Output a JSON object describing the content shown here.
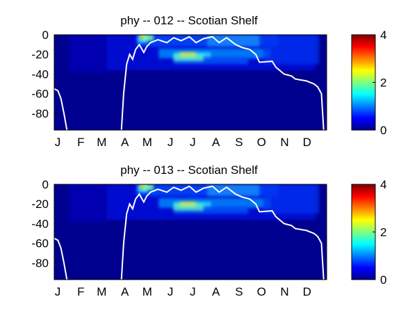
{
  "chart_data": [
    {
      "type": "heatmap",
      "title": "phy -- 012 -- Scotian Shelf",
      "xlabel": "",
      "ylabel": "",
      "x_ticks": [
        "J",
        "F",
        "M",
        "A",
        "M",
        "J",
        "J",
        "A",
        "S",
        "O",
        "N",
        "D"
      ],
      "y_ticks": [
        0,
        -20,
        -40,
        -60,
        -80
      ],
      "ylim": [
        -97,
        0
      ],
      "colorbar": {
        "range": [
          0,
          4
        ],
        "ticks": [
          0,
          2,
          4
        ],
        "colormap": "jet"
      },
      "mixed_layer_depth": {
        "x": [
          "Jan 1",
          "Jan 6",
          "Jan 10",
          "Jan 14",
          "Jan 18",
          "Apr 1",
          "Apr 4",
          "Apr 8",
          "Apr 12",
          "Apr 16",
          "Apr 20",
          "Apr 25",
          "May 1",
          "May 5",
          "May 10",
          "May 20",
          "Jun 1",
          "Jun 10",
          "Jun 20",
          "Jul 1",
          "Jul 10",
          "Jul 20",
          "Aug 1",
          "Aug 10",
          "Aug 20",
          "Sep 1",
          "Sep 10",
          "Sep 20",
          "Sep 28",
          "Oct 3",
          "Oct 20",
          "Oct 25",
          "Nov 5",
          "Nov 15",
          "Nov 20",
          "Dec 5",
          "Dec 15",
          "Dec 20",
          "Dec 25",
          "Dec 28"
        ],
        "y": [
          -55,
          -57,
          -65,
          -80,
          -97,
          -97,
          -60,
          -30,
          -20,
          -25,
          -15,
          -10,
          -18,
          -12,
          -8,
          -5,
          -8,
          -3,
          -6,
          -2,
          -8,
          -4,
          -2,
          -8,
          -3,
          -10,
          -13,
          -15,
          -20,
          -28,
          -27,
          -33,
          -40,
          -42,
          -45,
          -47,
          -50,
          -53,
          -60,
          -97
        ]
      },
      "hotspots": [
        {
          "month": "Apr-May",
          "depth": -2,
          "value": 3.0
        },
        {
          "month": "Jun",
          "depth": -20,
          "value": 2.7
        }
      ]
    },
    {
      "type": "heatmap",
      "title": "phy -- 013 -- Scotian Shelf",
      "xlabel": "",
      "ylabel": "",
      "x_ticks": [
        "J",
        "F",
        "M",
        "A",
        "M",
        "J",
        "J",
        "A",
        "S",
        "O",
        "N",
        "D"
      ],
      "y_ticks": [
        0,
        -20,
        -40,
        -60,
        -80
      ],
      "ylim": [
        -97,
        0
      ],
      "colorbar": {
        "range": [
          0,
          4
        ],
        "ticks": [
          0,
          2,
          4
        ],
        "colormap": "jet"
      },
      "mixed_layer_depth": {
        "x": [
          "Jan 1",
          "Jan 6",
          "Jan 10",
          "Jan 14",
          "Jan 18",
          "Apr 1",
          "Apr 4",
          "Apr 8",
          "Apr 12",
          "Apr 16",
          "Apr 20",
          "Apr 25",
          "May 1",
          "May 5",
          "May 10",
          "May 20",
          "Jun 1",
          "Jun 10",
          "Jun 20",
          "Jul 1",
          "Jul 10",
          "Jul 20",
          "Aug 1",
          "Aug 10",
          "Aug 20",
          "Sep 1",
          "Sep 10",
          "Sep 20",
          "Sep 28",
          "Oct 3",
          "Oct 20",
          "Oct 25",
          "Nov 5",
          "Nov 15",
          "Nov 20",
          "Dec 5",
          "Dec 15",
          "Dec 20",
          "Dec 25",
          "Dec 28"
        ],
        "y": [
          -55,
          -57,
          -65,
          -80,
          -97,
          -97,
          -60,
          -30,
          -20,
          -25,
          -15,
          -10,
          -18,
          -12,
          -8,
          -5,
          -8,
          -3,
          -6,
          -2,
          -8,
          -4,
          -2,
          -8,
          -3,
          -10,
          -13,
          -15,
          -20,
          -28,
          -27,
          -33,
          -40,
          -42,
          -45,
          -47,
          -50,
          -53,
          -60,
          -97
        ]
      },
      "hotspots": [
        {
          "month": "Apr-May",
          "depth": -2,
          "value": 3.0
        },
        {
          "month": "Jun",
          "depth": -20,
          "value": 2.5
        }
      ]
    }
  ]
}
